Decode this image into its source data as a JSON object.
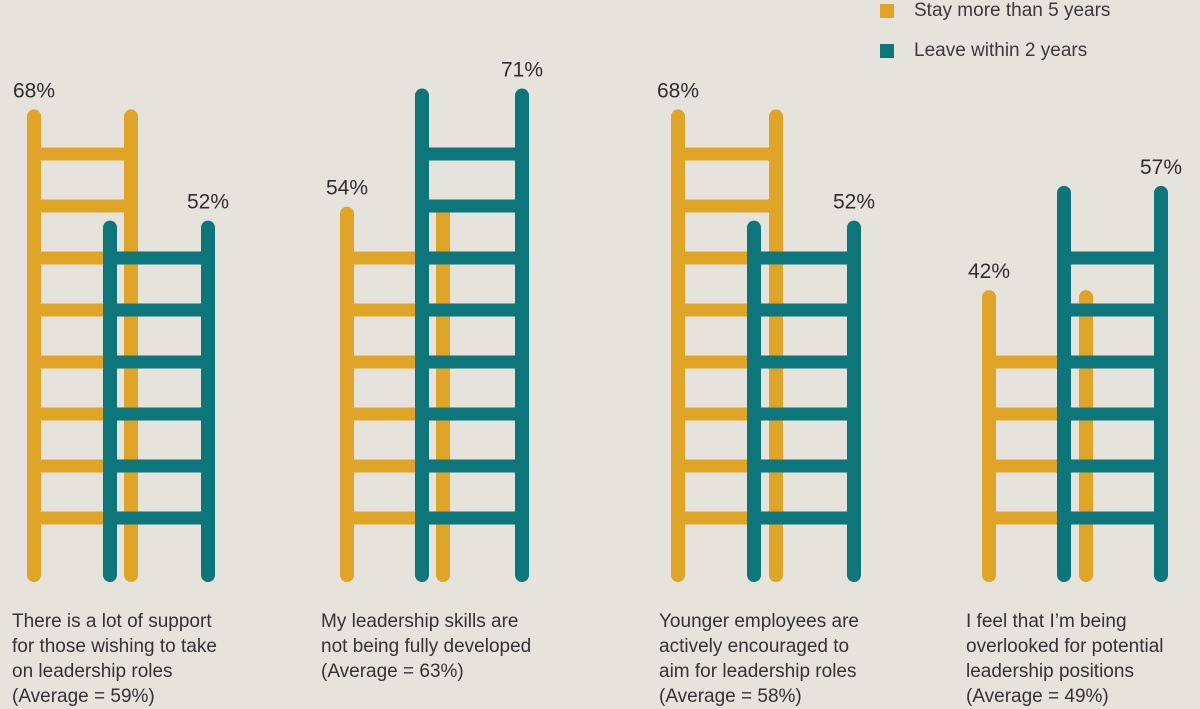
{
  "legend": {
    "stay_label": "Stay more than 5 years",
    "leave_label": "Leave within 2 years"
  },
  "colors": {
    "stay": "#e0a526",
    "leave": "#0d767b"
  },
  "captions": [
    {
      "line1": "There is a lot of support",
      "line2": "for those wishing to take",
      "line3": "on leadership roles",
      "line4": "(Average = 59%)"
    },
    {
      "line1": "My leadership skills are",
      "line2": "not being fully developed",
      "line3": "(Average = 63%)",
      "line4": ""
    },
    {
      "line1": "Younger employees are",
      "line2": "actively encouraged to",
      "line3": "aim for leadership roles",
      "line4": "(Average = 58%)"
    },
    {
      "line1": "I feel that I’m being",
      "line2": "overlooked for potential",
      "line3": "leadership positions",
      "line4": "(Average = 49%)"
    }
  ],
  "chart_data": {
    "type": "bar",
    "categories": [
      "There is a lot of support for those wishing to take on leadership roles",
      "My leadership skills are not being fully developed",
      "Younger employees are actively encouraged to aim for leadership roles",
      "I feel that I’m being overlooked for potential leadership positions"
    ],
    "series": [
      {
        "name": "Stay more than 5 years",
        "values": [
          68,
          54,
          68,
          42
        ],
        "labels": [
          "68%",
          "54%",
          "68%",
          "42%"
        ]
      },
      {
        "name": "Leave within 2 years",
        "values": [
          52,
          71,
          52,
          57
        ],
        "labels": [
          "52%",
          "71%",
          "52%",
          "57%"
        ]
      }
    ],
    "averages": [
      59,
      63,
      58,
      49
    ],
    "legend_position": "top-right",
    "grid": false
  }
}
